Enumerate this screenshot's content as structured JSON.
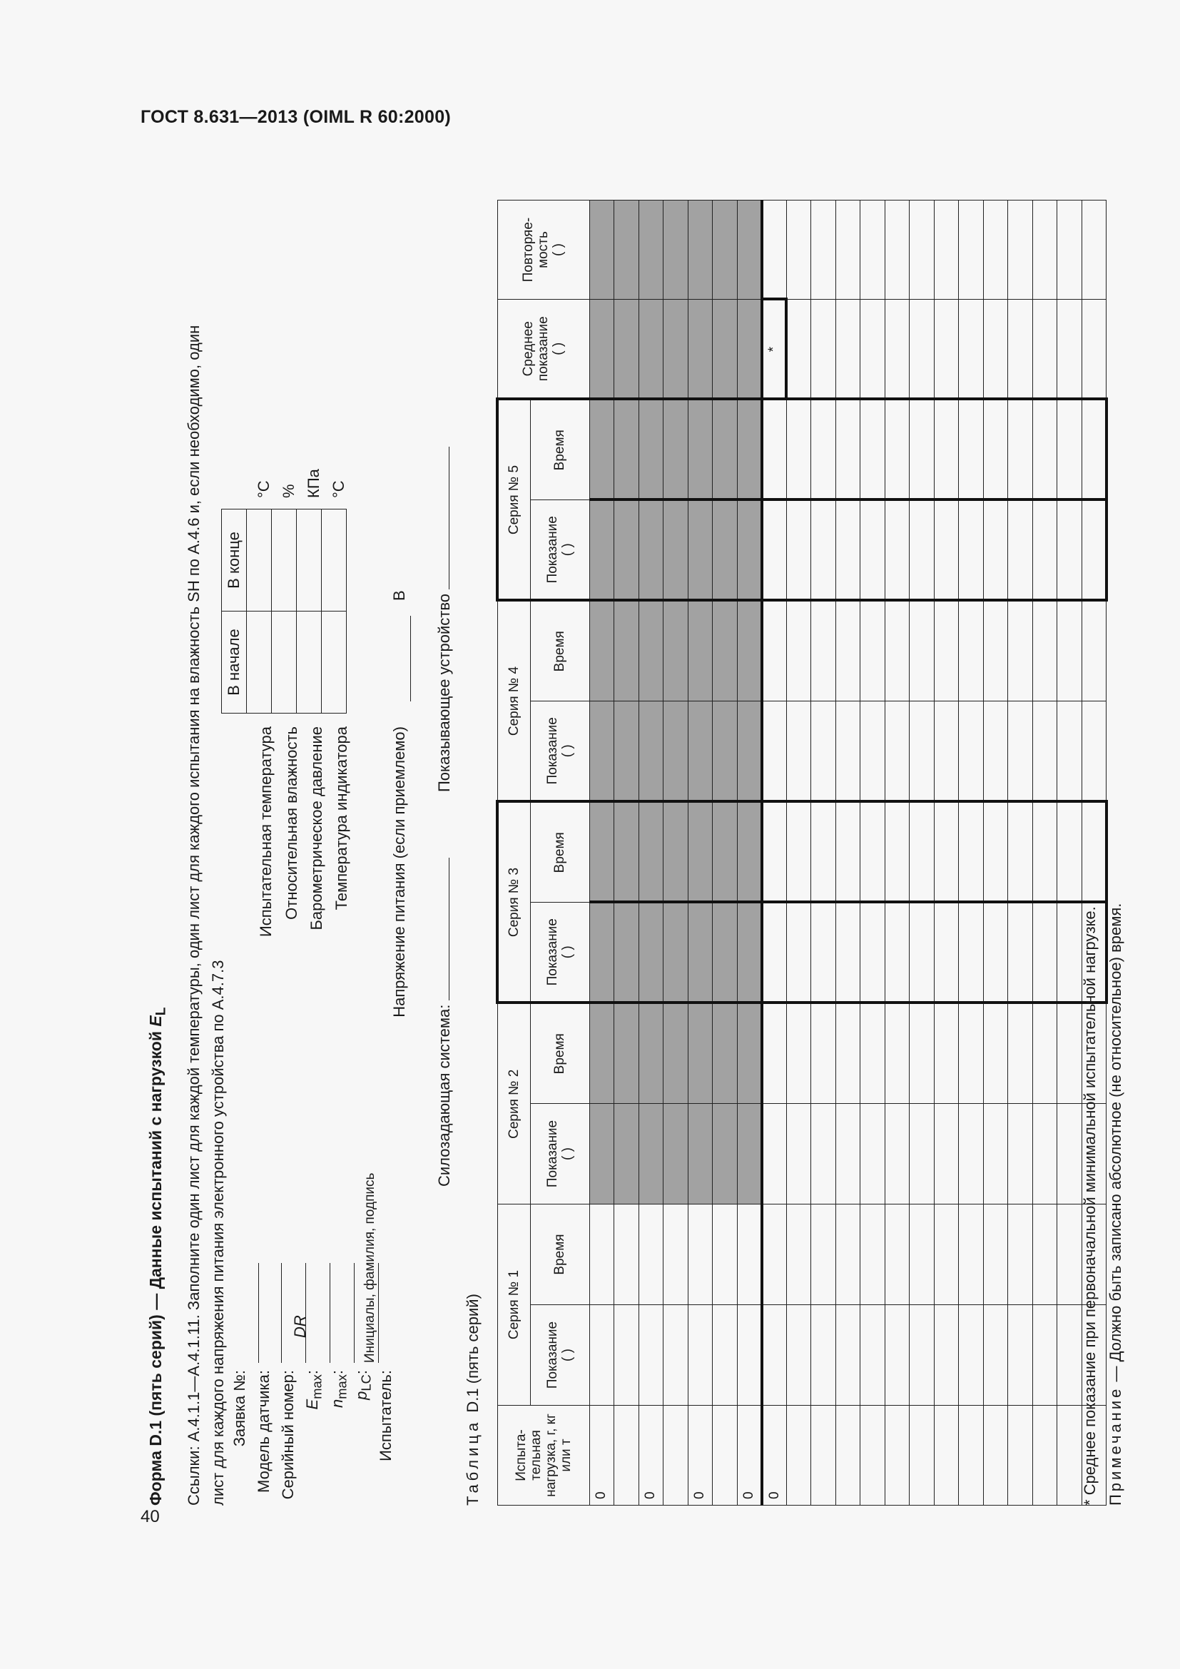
{
  "header": "ГОСТ 8.631—2013 (OIML R 60:2000)",
  "page_number": "40",
  "form": {
    "title_prefix": "Форма D.1 (пять серий) — Данные испытаний с нагрузкой ",
    "title_symbol": "E",
    "title_sub": "L",
    "refs_line1": "Ссылки: А.4.1.1—А.4.1.11. Заполните один лист для каждой температуры, один лист для каждого испытания на влажность SH по А.4.6 и, если необходимо, один",
    "refs_line2": "лист для каждого напряжения питания электронного устройства по А.4.7.3",
    "fields": {
      "application": "Заявка №:",
      "sensor_model": "Модель датчика:",
      "serial": "Серийный номер:",
      "emax": "E",
      "emax_sub": "max",
      "nmax": "n",
      "nmax_sub": "max",
      "plc": "p",
      "plc_sub": "LC",
      "colon": ":",
      "dr": "DR",
      "tester": "Испытатель:",
      "signature": "Инициалы, фамилия, подпись"
    },
    "env": {
      "head_start": "В начале",
      "head_end": "В конце",
      "rows": [
        {
          "label": "Испытательная температура",
          "unit": "°C"
        },
        {
          "label": "Относительная влажность",
          "unit": "%"
        },
        {
          "label": "Барометрическое давление",
          "unit": "КПа"
        },
        {
          "label": "Температура индикатора",
          "unit": "°C"
        }
      ],
      "voltage_label": "Напряжение питания (если приемлемо)",
      "voltage_unit": "В"
    },
    "system_label": "Силозадающая система:",
    "indicator_label": "Показывающее устройство"
  },
  "table": {
    "caption_prefix": "Таблица",
    "caption_rest": "D.1 (пять серий)",
    "load_header": "Испыта-тельная нагрузка, г, кг или т",
    "series": [
      "Серия № 1",
      "Серия № 2",
      "Серия № 3",
      "Серия № 4",
      "Серия № 5"
    ],
    "reading": "Показание",
    "reading_unit": "(      )",
    "time": "Время",
    "mean": "Среднее показание",
    "mean_unit": "(      )",
    "repeat": "Повторяе-мость",
    "repeat_unit": "(      )",
    "loads": [
      "0",
      "",
      "0",
      "",
      "0",
      "",
      "0",
      "0",
      "",
      "",
      "",
      "",
      "",
      "",
      "",
      "",
      "",
      "",
      "",
      "",
      ""
    ],
    "mean_mark": "*",
    "footnote": "* Среднее показание при первоначальной минимальной испытательной нагрузке.",
    "note_label": "Примечание",
    "note_text": " — Должно быть записано абсолютное (не относительное) время."
  }
}
